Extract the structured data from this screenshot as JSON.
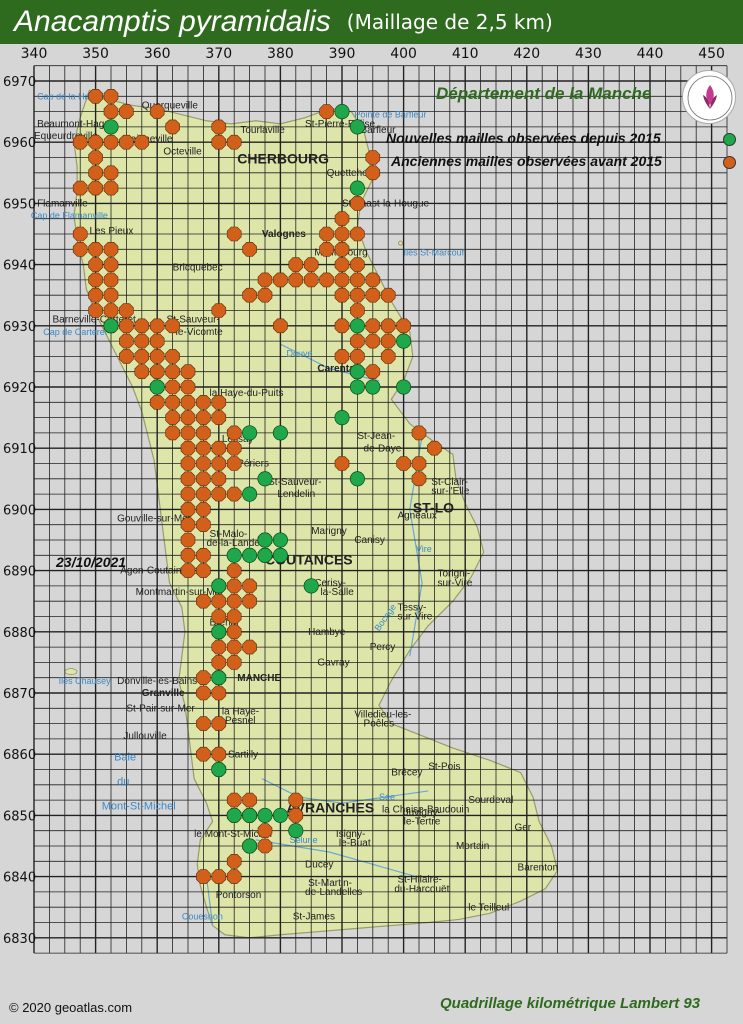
{
  "title": {
    "species": "Anacamptis pyramidalis",
    "subtitle": "(Maillage de 2,5 km)"
  },
  "department_label": "Département de la Manche",
  "legend": {
    "new": {
      "label": "Nouvelles mailles observées depuis 2015",
      "color": "#1fa84b"
    },
    "old": {
      "label": "Anciennes mailles observées avant 2015",
      "color": "#d2601a"
    }
  },
  "date": "23/10/2021",
  "copyright": "© 2020 geoatlas.com",
  "grid_label": "Quadrillage kilométrique Lambert 93",
  "axes": {
    "x_ticks": [
      "340",
      "350",
      "360",
      "370",
      "380",
      "390",
      "400",
      "410",
      "420",
      "430",
      "440",
      "450"
    ],
    "y_ticks": [
      "6970",
      "6960",
      "6950",
      "6940",
      "6930",
      "6920",
      "6910",
      "6900",
      "6890",
      "6880",
      "6870",
      "6860",
      "6850",
      "6840",
      "6830"
    ],
    "x_range": [
      340,
      452.5
    ],
    "y_range": [
      6827.5,
      6972.5
    ],
    "cell_km": 2.5
  },
  "places": [
    {
      "name": "CHERBOURG",
      "x": 373.0,
      "y": 6956.5,
      "big": true
    },
    {
      "name": "Octeville",
      "x": 361.0,
      "y": 6958.0
    },
    {
      "name": "Equeurdreville",
      "x": 340.0,
      "y": 6960.5
    },
    {
      "name": "-Hainneville",
      "x": 354.0,
      "y": 6960.0
    },
    {
      "name": "Querqueville",
      "x": 357.5,
      "y": 6965.5
    },
    {
      "name": "Tourlaville",
      "x": 373.5,
      "y": 6961.5
    },
    {
      "name": "St-Pierre-Eglise",
      "x": 384.0,
      "y": 6962.5
    },
    {
      "name": "Barfleur",
      "x": 393.0,
      "y": 6961.5
    },
    {
      "name": "Beaumont-Hague",
      "x": 340.5,
      "y": 6962.5
    },
    {
      "name": "Quettehou",
      "x": 387.5,
      "y": 6954.5
    },
    {
      "name": "St-Vaast-la-Hougue",
      "x": 390.0,
      "y": 6949.5
    },
    {
      "name": "Valognes",
      "x": 377.0,
      "y": 6944.5,
      "bold": true
    },
    {
      "name": "Montebourg",
      "x": 385.5,
      "y": 6941.5
    },
    {
      "name": "Bricquebec",
      "x": 362.5,
      "y": 6939.0
    },
    {
      "name": "Les Pieux",
      "x": 349.0,
      "y": 6945.0
    },
    {
      "name": "Flamanville",
      "x": 340.5,
      "y": 6949.5
    },
    {
      "name": "Barneville-Carteret",
      "x": 343.0,
      "y": 6930.5
    },
    {
      "name": "St-Sauveur-",
      "x": 361.5,
      "y": 6930.5
    },
    {
      "name": "le-Vicomte",
      "x": 363.0,
      "y": 6928.5
    },
    {
      "name": "Carentan",
      "x": 386.0,
      "y": 6922.5,
      "bold": true
    },
    {
      "name": "la Haye-du-Puits",
      "x": 368.5,
      "y": 6918.5
    },
    {
      "name": "Lessay",
      "x": 370.5,
      "y": 6911.0
    },
    {
      "name": "Périers",
      "x": 373.0,
      "y": 6907.0
    },
    {
      "name": "St-Jean-",
      "x": 392.5,
      "y": 6911.5
    },
    {
      "name": "de-Daye",
      "x": 393.5,
      "y": 6909.5
    },
    {
      "name": "St-Sauveur-",
      "x": 378.0,
      "y": 6904.0
    },
    {
      "name": "Lendelin",
      "x": 379.5,
      "y": 6902.0
    },
    {
      "name": "ST-LO",
      "x": 401.5,
      "y": 6899.5,
      "big": true
    },
    {
      "name": "Agneaux",
      "x": 399.0,
      "y": 6898.5
    },
    {
      "name": "Gouville-sur-Mer",
      "x": 353.5,
      "y": 6898.0
    },
    {
      "name": "Marigny",
      "x": 385.0,
      "y": 6896.0
    },
    {
      "name": "Canisy",
      "x": 392.0,
      "y": 6894.5
    },
    {
      "name": "St-Malo-",
      "x": 368.5,
      "y": 6895.5
    },
    {
      "name": "de-la-Lande",
      "x": 368.0,
      "y": 6894.0
    },
    {
      "name": "COUTANCES",
      "x": 377.5,
      "y": 6891.0,
      "big": true
    },
    {
      "name": "Agon-Coutainville",
      "x": 354.0,
      "y": 6889.5
    },
    {
      "name": "Montmartin-sur-Mer",
      "x": 356.5,
      "y": 6886.0
    },
    {
      "name": "Cerisy-",
      "x": 385.5,
      "y": 6887.5
    },
    {
      "name": "la-Salle",
      "x": 386.5,
      "y": 6886.0
    },
    {
      "name": "Torigni-",
      "x": 405.5,
      "y": 6889.0
    },
    {
      "name": "sur-Vire",
      "x": 405.5,
      "y": 6887.5
    },
    {
      "name": "Tessy-",
      "x": 399.0,
      "y": 6883.5
    },
    {
      "name": "sur-Vire",
      "x": 399.0,
      "y": 6882.0
    },
    {
      "name": "Hambye",
      "x": 384.5,
      "y": 6879.5
    },
    {
      "name": "Gavray",
      "x": 386.0,
      "y": 6874.5
    },
    {
      "name": "Percy",
      "x": 394.5,
      "y": 6877.0
    },
    {
      "name": "Bréhal",
      "x": 368.5,
      "y": 6881.0
    },
    {
      "name": "Granville",
      "x": 357.5,
      "y": 6869.5,
      "bold": true
    },
    {
      "name": "Donville-les-Bains",
      "x": 353.5,
      "y": 6871.5
    },
    {
      "name": "MANCHE",
      "x": 373.0,
      "y": 6872.0,
      "xl": true
    },
    {
      "name": "St-Pair-sur-Mer",
      "x": 355.0,
      "y": 6867.0
    },
    {
      "name": "la Haye-",
      "x": 370.5,
      "y": 6866.5
    },
    {
      "name": "Pesnel",
      "x": 371.0,
      "y": 6865.0
    },
    {
      "name": "Villedieu-les-",
      "x": 392.0,
      "y": 6866.0
    },
    {
      "name": "Poêles",
      "x": 393.5,
      "y": 6864.5
    },
    {
      "name": "Jullouville",
      "x": 354.5,
      "y": 6862.5
    },
    {
      "name": "Sartilly",
      "x": 371.5,
      "y": 6859.5
    },
    {
      "name": "Brécey",
      "x": 398.0,
      "y": 6856.5
    },
    {
      "name": "St-Pois",
      "x": 404.0,
      "y": 6857.5
    },
    {
      "name": "AVRANCHES",
      "x": 381.0,
      "y": 6850.5,
      "big": true
    },
    {
      "name": "la Chaise-Baudouin",
      "x": 396.5,
      "y": 6850.5
    },
    {
      "name": "Juvigny-",
      "x": 400.0,
      "y": 6850.0
    },
    {
      "name": "le-Tertre",
      "x": 400.0,
      "y": 6848.5
    },
    {
      "name": "Sourdeval",
      "x": 410.5,
      "y": 6852.0
    },
    {
      "name": "Isigny-",
      "x": 389.0,
      "y": 6846.5
    },
    {
      "name": "le-Buat",
      "x": 389.5,
      "y": 6845.0
    },
    {
      "name": "le Mont-St-Michel",
      "x": 366.0,
      "y": 6846.5
    },
    {
      "name": "Mortain",
      "x": 408.5,
      "y": 6844.5
    },
    {
      "name": "Ger",
      "x": 418.0,
      "y": 6847.5
    },
    {
      "name": "Ducey",
      "x": 384.0,
      "y": 6841.5
    },
    {
      "name": "Barenton",
      "x": 418.5,
      "y": 6841.0
    },
    {
      "name": "Pontorson",
      "x": 369.5,
      "y": 6836.5
    },
    {
      "name": "St-Martin-",
      "x": 384.5,
      "y": 6838.5
    },
    {
      "name": "de-Landelles",
      "x": 384.0,
      "y": 6837.0
    },
    {
      "name": "St-Hilaire-",
      "x": 399.0,
      "y": 6839.0
    },
    {
      "name": "du-Harcouët",
      "x": 398.5,
      "y": 6837.5
    },
    {
      "name": "le Teilleul",
      "x": 410.5,
      "y": 6834.5
    },
    {
      "name": "St-James",
      "x": 382.0,
      "y": 6833.0
    },
    {
      "name": "St-Clair-",
      "x": 404.5,
      "y": 6904.0
    },
    {
      "name": "sur-l'Elle",
      "x": 404.5,
      "y": 6902.5
    }
  ],
  "water_labels": [
    {
      "name": "Baie",
      "x": 353.0,
      "y": 6859.0,
      "sea": true
    },
    {
      "name": "du",
      "x": 353.5,
      "y": 6855.0,
      "sea": true
    },
    {
      "name": "Mont-St-Michel",
      "x": 351.0,
      "y": 6851.0,
      "sea": true
    },
    {
      "name": "Iles Chausey",
      "x": 344.0,
      "y": 6871.5
    },
    {
      "name": "Cap de Flamanville",
      "x": 339.5,
      "y": 6947.5
    },
    {
      "name": "Cap de la Hague",
      "x": 340.5,
      "y": 6967.0
    },
    {
      "name": "Pointe de Barfleur",
      "x": 392.0,
      "y": 6964.0
    },
    {
      "name": "Iles St-Marcouf",
      "x": 400.0,
      "y": 6941.5
    },
    {
      "name": "Cap de Carteret",
      "x": 341.5,
      "y": 6928.5
    },
    {
      "name": "Douve",
      "x": 381.0,
      "y": 6925.0
    },
    {
      "name": "Vire",
      "x": 402.0,
      "y": 6893.0
    },
    {
      "name": "Sée",
      "x": 396.0,
      "y": 6852.5
    },
    {
      "name": "Sélune",
      "x": 381.5,
      "y": 6845.5
    },
    {
      "name": "Couesnon",
      "x": 364.0,
      "y": 6833.0
    },
    {
      "name": "Bocage",
      "x": 396.0,
      "y": 6880.0
    }
  ],
  "cells": {
    "old": [
      [
        350,
        6967.5
      ],
      [
        352.5,
        6967.5
      ],
      [
        352.5,
        6965
      ],
      [
        355,
        6965
      ],
      [
        360,
        6965
      ],
      [
        362.5,
        6962.5
      ],
      [
        387.5,
        6965
      ],
      [
        347.5,
        6960
      ],
      [
        350,
        6960
      ],
      [
        352.5,
        6960
      ],
      [
        355,
        6960
      ],
      [
        357.5,
        6960
      ],
      [
        370,
        6962.5
      ],
      [
        372.5,
        6960
      ],
      [
        370,
        6960
      ],
      [
        350,
        6957.5
      ],
      [
        395,
        6957.5
      ],
      [
        395,
        6955
      ],
      [
        350,
        6955
      ],
      [
        352.5,
        6955
      ],
      [
        350,
        6952.5
      ],
      [
        352.5,
        6952.5
      ],
      [
        347.5,
        6952.5
      ],
      [
        392.5,
        6950
      ],
      [
        390,
        6947.5
      ],
      [
        387.5,
        6945
      ],
      [
        390,
        6945
      ],
      [
        392.5,
        6945
      ],
      [
        387.5,
        6942.5
      ],
      [
        390,
        6942.5
      ],
      [
        347.5,
        6945
      ],
      [
        347.5,
        6942.5
      ],
      [
        350,
        6942.5
      ],
      [
        352.5,
        6942.5
      ],
      [
        372.5,
        6945
      ],
      [
        375,
        6942.5
      ],
      [
        350,
        6940
      ],
      [
        352.5,
        6940
      ],
      [
        382.5,
        6940
      ],
      [
        385,
        6940
      ],
      [
        390,
        6940
      ],
      [
        392.5,
        6940
      ],
      [
        350,
        6937.5
      ],
      [
        352.5,
        6937.5
      ],
      [
        377.5,
        6937.5
      ],
      [
        380,
        6937.5
      ],
      [
        382.5,
        6937.5
      ],
      [
        385,
        6937.5
      ],
      [
        387.5,
        6937.5
      ],
      [
        390,
        6937.5
      ],
      [
        392.5,
        6937.5
      ],
      [
        395,
        6937.5
      ],
      [
        350,
        6935
      ],
      [
        352.5,
        6935
      ],
      [
        375,
        6935
      ],
      [
        377.5,
        6935
      ],
      [
        390,
        6935
      ],
      [
        392.5,
        6935
      ],
      [
        395,
        6935
      ],
      [
        397.5,
        6935
      ],
      [
        350,
        6932.5
      ],
      [
        352.5,
        6932.5
      ],
      [
        355,
        6932.5
      ],
      [
        370,
        6932.5
      ],
      [
        392.5,
        6932.5
      ],
      [
        352.5,
        6930
      ],
      [
        355,
        6930
      ],
      [
        357.5,
        6930
      ],
      [
        360,
        6930
      ],
      [
        362.5,
        6930
      ],
      [
        380,
        6930
      ],
      [
        390,
        6930
      ],
      [
        395,
        6930
      ],
      [
        397.5,
        6930
      ],
      [
        400,
        6930
      ],
      [
        355,
        6927.5
      ],
      [
        357.5,
        6927.5
      ],
      [
        360,
        6927.5
      ],
      [
        392.5,
        6927.5
      ],
      [
        395,
        6927.5
      ],
      [
        397.5,
        6927.5
      ],
      [
        355,
        6925
      ],
      [
        357.5,
        6925
      ],
      [
        360,
        6925
      ],
      [
        362.5,
        6925
      ],
      [
        390,
        6925
      ],
      [
        392.5,
        6925
      ],
      [
        397.5,
        6925
      ],
      [
        357.5,
        6922.5
      ],
      [
        360,
        6922.5
      ],
      [
        362.5,
        6922.5
      ],
      [
        365,
        6922.5
      ],
      [
        392.5,
        6922.5
      ],
      [
        395,
        6922.5
      ],
      [
        360,
        6920
      ],
      [
        362.5,
        6920
      ],
      [
        365,
        6920
      ],
      [
        360,
        6917.5
      ],
      [
        362.5,
        6917.5
      ],
      [
        365,
        6917.5
      ],
      [
        367.5,
        6917.5
      ],
      [
        370,
        6917.5
      ],
      [
        362.5,
        6915
      ],
      [
        365,
        6915
      ],
      [
        367.5,
        6915
      ],
      [
        370,
        6915
      ],
      [
        362.5,
        6912.5
      ],
      [
        365,
        6912.5
      ],
      [
        367.5,
        6912.5
      ],
      [
        372.5,
        6912.5
      ],
      [
        402.5,
        6912.5
      ],
      [
        365,
        6910
      ],
      [
        367.5,
        6910
      ],
      [
        370,
        6910
      ],
      [
        372.5,
        6910
      ],
      [
        405,
        6910
      ],
      [
        365,
        6907.5
      ],
      [
        367.5,
        6907.5
      ],
      [
        370,
        6907.5
      ],
      [
        372.5,
        6907.5
      ],
      [
        390,
        6907.5
      ],
      [
        400,
        6907.5
      ],
      [
        402.5,
        6907.5
      ],
      [
        365,
        6905
      ],
      [
        367.5,
        6905
      ],
      [
        370,
        6905
      ],
      [
        402.5,
        6905
      ],
      [
        365,
        6902.5
      ],
      [
        367.5,
        6902.5
      ],
      [
        370,
        6902.5
      ],
      [
        372.5,
        6902.5
      ],
      [
        365,
        6900
      ],
      [
        367.5,
        6900
      ],
      [
        365,
        6897.5
      ],
      [
        367.5,
        6897.5
      ],
      [
        365,
        6895
      ],
      [
        377.5,
        6895
      ],
      [
        365,
        6892.5
      ],
      [
        367.5,
        6892.5
      ],
      [
        377.5,
        6892.5
      ],
      [
        365,
        6890
      ],
      [
        367.5,
        6890
      ],
      [
        372.5,
        6890
      ],
      [
        370,
        6887.5
      ],
      [
        372.5,
        6887.5
      ],
      [
        375,
        6887.5
      ],
      [
        367.5,
        6885
      ],
      [
        370,
        6885
      ],
      [
        372.5,
        6885
      ],
      [
        375,
        6885
      ],
      [
        370,
        6882.5
      ],
      [
        372.5,
        6882.5
      ],
      [
        370,
        6880
      ],
      [
        372.5,
        6880
      ],
      [
        370,
        6877.5
      ],
      [
        372.5,
        6877.5
      ],
      [
        375,
        6877.5
      ],
      [
        370,
        6875
      ],
      [
        372.5,
        6875
      ],
      [
        367.5,
        6872.5
      ],
      [
        370,
        6872.5
      ],
      [
        367.5,
        6870
      ],
      [
        370,
        6870
      ],
      [
        367.5,
        6865
      ],
      [
        370,
        6865
      ],
      [
        367.5,
        6860
      ],
      [
        370,
        6860
      ],
      [
        370,
        6857.5
      ],
      [
        372.5,
        6852.5
      ],
      [
        375,
        6852.5
      ],
      [
        382.5,
        6852.5
      ],
      [
        372.5,
        6850
      ],
      [
        375,
        6850
      ],
      [
        382.5,
        6850
      ],
      [
        377.5,
        6847.5
      ],
      [
        375,
        6845
      ],
      [
        377.5,
        6845
      ],
      [
        372.5,
        6842.5
      ],
      [
        367.5,
        6840
      ],
      [
        370,
        6840
      ],
      [
        372.5,
        6840
      ]
    ],
    "new": [
      [
        390,
        6965
      ],
      [
        352.5,
        6962.5
      ],
      [
        392.5,
        6962.5
      ],
      [
        392.5,
        6952.5
      ],
      [
        352.5,
        6930
      ],
      [
        392.5,
        6930
      ],
      [
        400,
        6927.5
      ],
      [
        392.5,
        6922.5
      ],
      [
        392.5,
        6920
      ],
      [
        395,
        6920
      ],
      [
        400,
        6920
      ],
      [
        360,
        6920
      ],
      [
        390,
        6915
      ],
      [
        375,
        6912.5
      ],
      [
        380,
        6912.5
      ],
      [
        377.5,
        6905
      ],
      [
        392.5,
        6905
      ],
      [
        375,
        6902.5
      ],
      [
        377.5,
        6895
      ],
      [
        380,
        6895
      ],
      [
        375,
        6892.5
      ],
      [
        377.5,
        6892.5
      ],
      [
        380,
        6892.5
      ],
      [
        372.5,
        6892.5
      ],
      [
        370,
        6887.5
      ],
      [
        385,
        6887.5
      ],
      [
        370,
        6880
      ],
      [
        370,
        6872.5
      ],
      [
        370,
        6857.5
      ],
      [
        372.5,
        6850
      ],
      [
        375,
        6850
      ],
      [
        377.5,
        6850
      ],
      [
        380,
        6850
      ],
      [
        382.5,
        6847.5
      ],
      [
        375,
        6845
      ]
    ]
  }
}
